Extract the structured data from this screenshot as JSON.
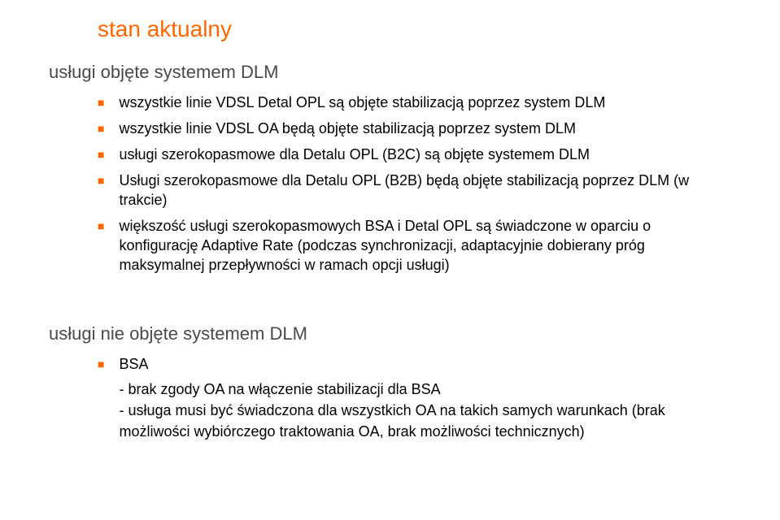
{
  "colors": {
    "accent": "#ff6600",
    "text": "#000000",
    "section_header": "#4a4a4a",
    "background": "#ffffff"
  },
  "title": "stan aktualny",
  "section1": {
    "header": "usługi objęte systemem DLM",
    "bullets": [
      "wszystkie linie VDSL Detal OPL są objęte stabilizacją poprzez system DLM",
      "wszystkie linie VDSL OA będą objęte stabilizacją poprzez  system DLM",
      "usługi szerokopasmowe dla Detalu OPL (B2C) są objęte systemem DLM",
      "Usługi szerokopasmowe dla Detalu OPL (B2B) będą objęte stabilizacją poprzez DLM (w trakcie)",
      "większość usługi szerokopasmowych BSA i Detal OPL są świadczone w oparciu o konfigurację Adaptive Rate  (podczas synchronizacji, adaptacyjnie dobierany próg maksymalnej przepływności w ramach opcji usługi)"
    ]
  },
  "section2": {
    "header": "usługi nie objęte systemem DLM",
    "bullets": [
      {
        "label": "BSA",
        "subitems": [
          "- brak zgody OA na włączenie stabilizacji dla BSA",
          "- usługa musi być świadczona dla wszystkich OA na takich samych warunkach (brak możliwości wybiórczego traktowania OA, brak możliwości technicznych)"
        ]
      }
    ]
  }
}
